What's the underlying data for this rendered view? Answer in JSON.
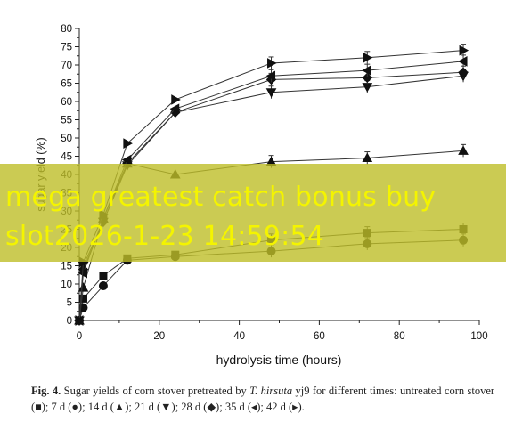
{
  "chart_data": {
    "type": "line",
    "xlabel": "hydrolysis time (hours)",
    "ylabel": "sugar yield (%)",
    "xlim": [
      0,
      100
    ],
    "ylim": [
      0,
      80
    ],
    "x_ticks": [
      0,
      20,
      40,
      60,
      80,
      100
    ],
    "y_ticks": [
      0,
      5,
      10,
      15,
      20,
      25,
      30,
      35,
      40,
      45,
      50,
      55,
      60,
      65,
      70,
      75,
      80
    ],
    "grid": false,
    "legend": "none (described in caption)",
    "x": [
      0,
      1,
      6,
      12,
      24,
      48,
      72,
      96
    ],
    "series": [
      {
        "marker": "square",
        "values": [
          0,
          6,
          12.3,
          17,
          18,
          22,
          24,
          25
        ]
      },
      {
        "marker": "circle",
        "values": [
          0,
          3.5,
          9.5,
          16.5,
          17.5,
          19,
          21,
          22
        ]
      },
      {
        "marker": "triangle-up",
        "values": [
          0,
          9,
          28,
          43,
          40,
          43.5,
          44.5,
          46.5
        ]
      },
      {
        "marker": "triangle-down",
        "values": [
          0,
          15,
          27,
          42.5,
          57,
          62.5,
          64,
          67
        ]
      },
      {
        "marker": "diamond",
        "values": [
          0,
          14,
          27,
          43,
          57,
          66,
          66.5,
          68
        ]
      },
      {
        "marker": "triangle-left",
        "values": [
          0,
          13,
          28,
          44,
          58,
          67,
          68.5,
          71
        ]
      },
      {
        "marker": "triangle-right",
        "values": [
          0,
          16,
          29,
          48.5,
          60.5,
          70.5,
          72,
          74
        ]
      }
    ]
  },
  "watermark": {
    "line1": "mega greatest catch bonus buy",
    "line2": "slot2026-1-23 14:59:54"
  },
  "caption": {
    "label": "Fig. 4.",
    "text_before_species": "Sugar yields of corn stover pretreated by",
    "species": "T. hirsuta",
    "text_after_species": "yj9 for different times: untreated corn stover (■); 7 d (●); 14 d (▲); 21 d (▼); 28 d (◆); 35 d (◂); 42 d (▸)."
  }
}
